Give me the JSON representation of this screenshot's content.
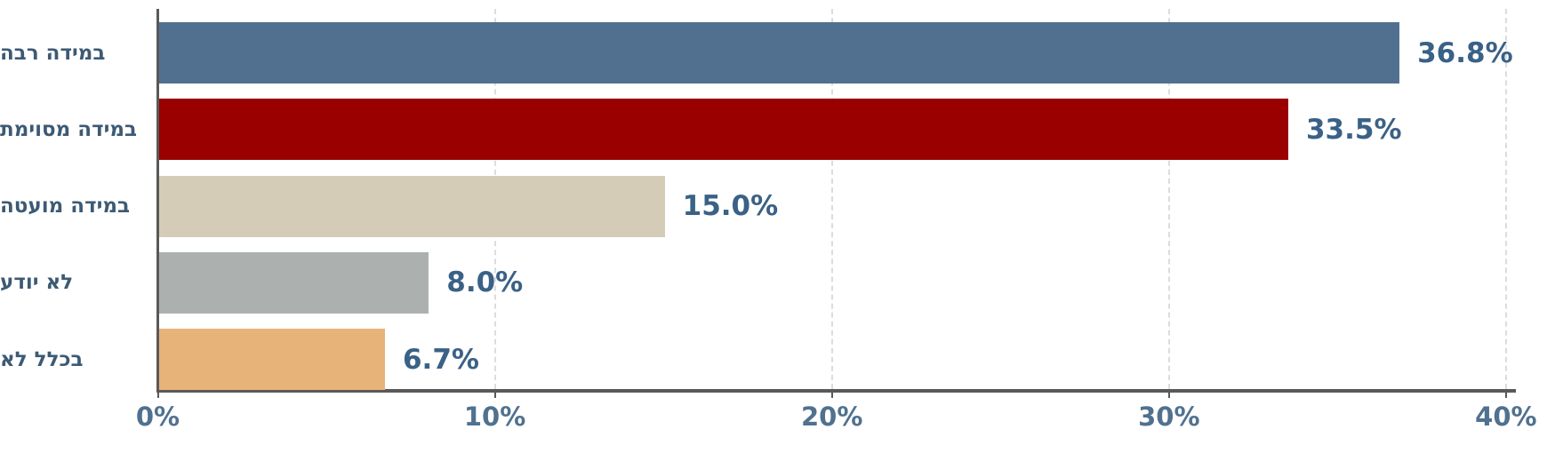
{
  "chart_data": {
    "type": "bar",
    "orientation": "horizontal",
    "title": "",
    "categories": [
      "במידה רבה",
      "במידה מסוימת",
      "במידה מועטה",
      "לא יודע",
      "בכלל לא"
    ],
    "values": [
      36.8,
      33.5,
      15.0,
      8.0,
      6.7
    ],
    "value_labels": [
      "36.8%",
      "33.5%",
      "15.0%",
      "8.0%",
      "6.7%"
    ],
    "bar_colors": [
      "#51708F",
      "#9A0000",
      "#D5CCB8",
      "#ACB1B0",
      "#E8B379"
    ],
    "xlim": [
      0,
      40
    ],
    "x_ticks": [
      {
        "value": 0,
        "label": "0%"
      },
      {
        "value": 10,
        "label": "10%"
      },
      {
        "value": 20,
        "label": "20%"
      },
      {
        "value": 30,
        "label": "30%"
      },
      {
        "value": 40,
        "label": "40%"
      }
    ],
    "grid": "vertical-dashed",
    "legend": "none"
  },
  "colors": {
    "background": "#FFFFFF",
    "axis": "#595959",
    "gridline": "#DCDCDC",
    "tick_label": "#50718F",
    "value_label": "#3A6186",
    "category_label": "#3D5A74"
  }
}
